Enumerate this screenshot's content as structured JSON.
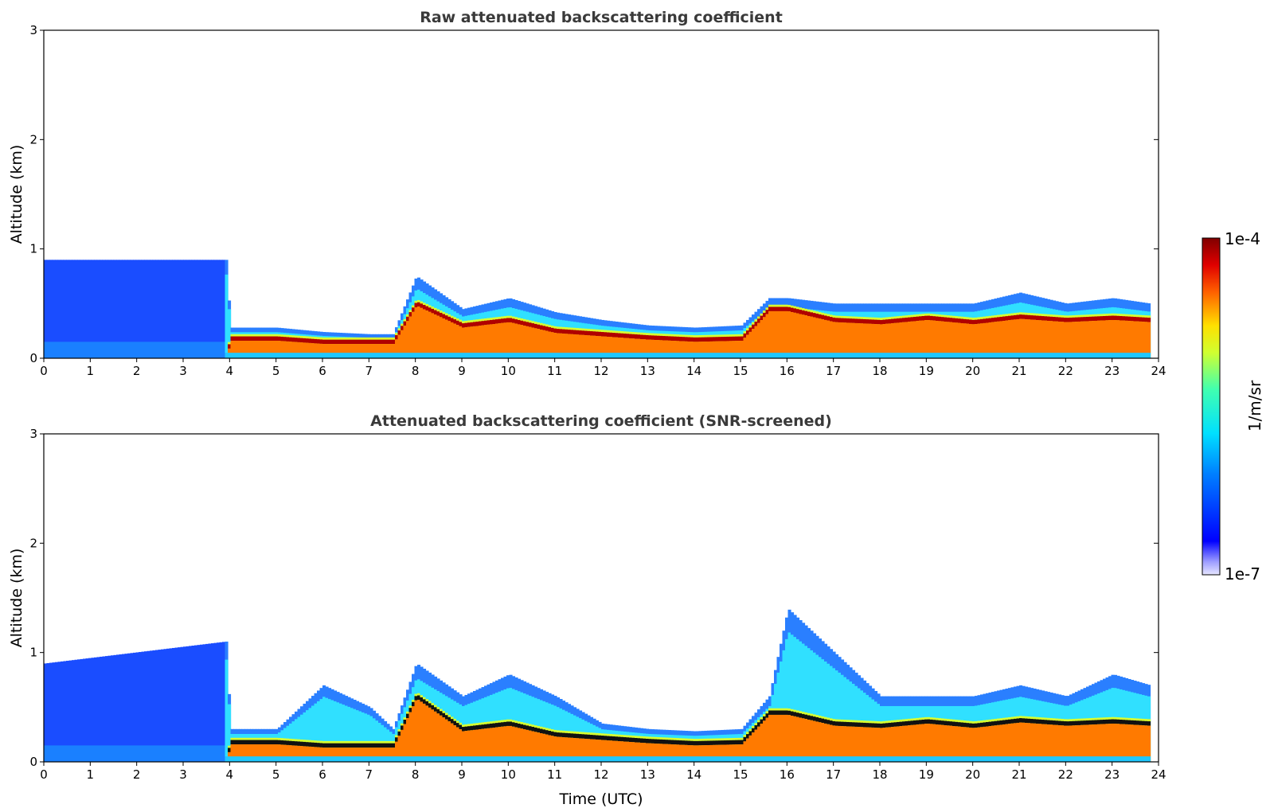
{
  "chart_data": [
    {
      "type": "heatmap",
      "title": "Raw attenuated backscattering coefficient",
      "xlabel": "",
      "ylabel": "Altitude (km)",
      "xlim": [
        0,
        24
      ],
      "ylim": [
        0,
        3
      ],
      "xticks": [
        0,
        1,
        2,
        3,
        4,
        5,
        6,
        7,
        8,
        9,
        10,
        11,
        12,
        13,
        14,
        15,
        16,
        17,
        18,
        19,
        20,
        21,
        22,
        23,
        24
      ],
      "yticks": [
        0,
        1,
        2,
        3
      ],
      "layers": [
        {
          "name": "boundary-layer",
          "x": [
            0,
            3.9,
            4,
            5,
            6,
            7,
            7.5,
            8,
            9,
            10,
            11,
            12,
            13,
            14,
            15,
            15.6,
            16,
            17,
            18,
            19,
            20,
            21,
            22,
            23,
            23.8
          ],
          "top": [
            0.9,
            0.9,
            0.28,
            0.28,
            0.24,
            0.22,
            0.22,
            0.75,
            0.45,
            0.55,
            0.42,
            0.35,
            0.3,
            0.28,
            0.3,
            0.55,
            0.55,
            0.5,
            0.5,
            0.5,
            0.5,
            0.6,
            0.5,
            0.55,
            0.5
          ],
          "peak": [
            0,
            0,
            0.18,
            0.18,
            0.15,
            0.15,
            0.15,
            0.5,
            0.3,
            0.35,
            0.25,
            0.22,
            0.19,
            0.17,
            0.18,
            0.45,
            0.45,
            0.35,
            0.33,
            0.37,
            0.33,
            0.38,
            0.35,
            0.37,
            0.35
          ]
        }
      ],
      "colorbar": {
        "min_label": "1e-7",
        "max_label": "1e-4",
        "label": "1/m/sr",
        "scale": "log",
        "colormap": "jet"
      }
    },
    {
      "type": "heatmap",
      "title": "Attenuated backscattering coefficient (SNR-screened)",
      "xlabel": "Time (UTC)",
      "ylabel": "Altitude (km)",
      "xlim": [
        0,
        24
      ],
      "ylim": [
        0,
        3
      ],
      "xticks": [
        0,
        1,
        2,
        3,
        4,
        5,
        6,
        7,
        8,
        9,
        10,
        11,
        12,
        13,
        14,
        15,
        16,
        17,
        18,
        19,
        20,
        21,
        22,
        23,
        24
      ],
      "yticks": [
        0,
        1,
        2,
        3
      ],
      "layers": [
        {
          "name": "boundary-layer",
          "x": [
            0,
            3.9,
            4,
            5,
            6,
            7,
            7.5,
            8,
            9,
            10,
            11,
            12,
            13,
            14,
            15,
            15.6,
            16,
            17,
            18,
            19,
            20,
            21,
            22,
            23,
            23.8
          ],
          "top": [
            0.9,
            1.1,
            0.3,
            0.3,
            0.7,
            0.5,
            0.3,
            0.9,
            0.6,
            0.8,
            0.6,
            0.35,
            0.3,
            0.28,
            0.3,
            0.6,
            1.4,
            1.0,
            0.6,
            0.6,
            0.6,
            0.7,
            0.6,
            0.8,
            0.7
          ],
          "peak": [
            0,
            0,
            0.18,
            0.18,
            0.15,
            0.15,
            0.15,
            0.6,
            0.3,
            0.35,
            0.25,
            0.22,
            0.19,
            0.17,
            0.18,
            0.45,
            0.45,
            0.35,
            0.33,
            0.37,
            0.33,
            0.38,
            0.35,
            0.37,
            0.35
          ]
        }
      ],
      "colorbar": {
        "min_label": "1e-7",
        "max_label": "1e-4",
        "label": "1/m/sr",
        "scale": "log",
        "colormap": "jet"
      }
    }
  ],
  "colors": {
    "axis": "#000000",
    "title": "#3a3a3a",
    "low": "#0a22ff",
    "high": "#800000"
  }
}
